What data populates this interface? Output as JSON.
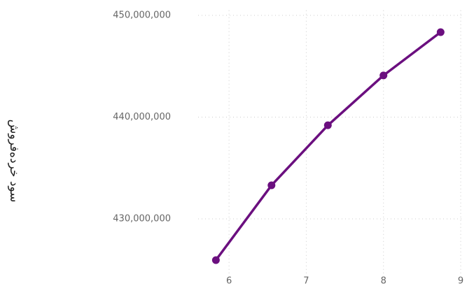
{
  "chart_data": {
    "type": "line",
    "y_label": "سود خرده‌فروش",
    "x": [
      5.83,
      6.55,
      7.28,
      8.0,
      8.74
    ],
    "series": [
      {
        "color": "#6b0f7f",
        "values": [
          425950000,
          433300000,
          439200000,
          444100000,
          448350000
        ]
      }
    ],
    "xlim": [
      5.6,
      9.0
    ],
    "xticks": [
      6,
      7,
      8,
      9
    ],
    "ylim": [
      424600000,
      450500000
    ],
    "yticks": [
      {
        "value": 430000000,
        "label": "430,000,000"
      },
      {
        "value": 440000000,
        "label": "440,000,000"
      },
      {
        "value": 450000000,
        "label": "450,000,000"
      }
    ],
    "grid": true
  }
}
